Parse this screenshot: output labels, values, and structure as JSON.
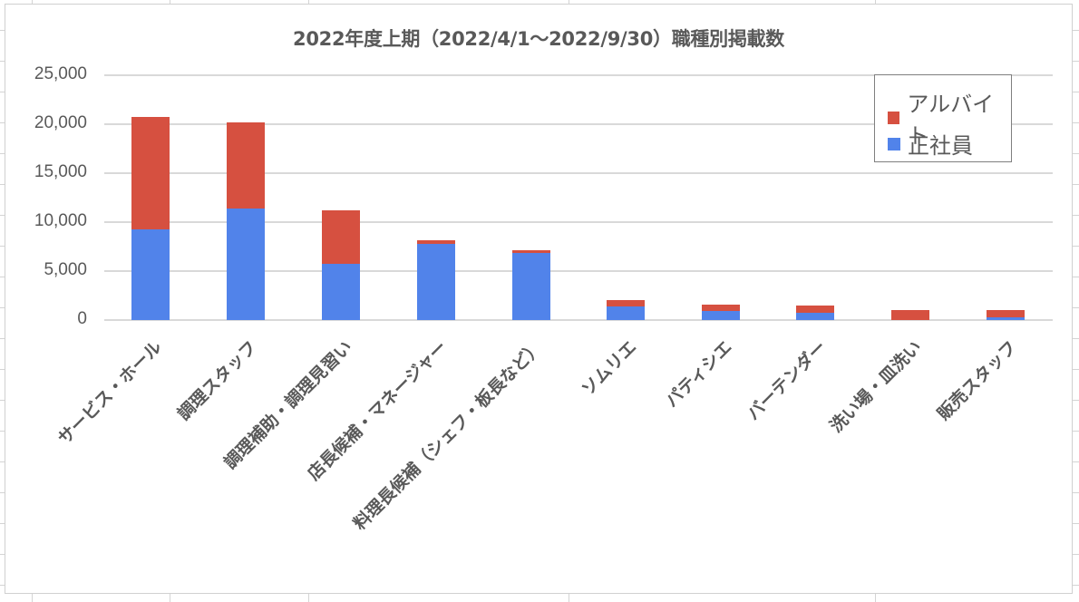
{
  "chart_data": {
    "type": "bar",
    "stacked": true,
    "title": "2022年度上期（2022/4/1〜2022/9/30）職種別掲載数",
    "xlabel": "",
    "ylabel": "",
    "ylim": [
      0,
      25000
    ],
    "yticks": [
      "0",
      "5,000",
      "10,000",
      "15,000",
      "20,000",
      "25,000"
    ],
    "grid": true,
    "legend_position": "top-right",
    "categories": [
      "サービス・ホール",
      "調理スタッフ",
      "調理補助・調理見習い",
      "店長候補・マネージャー",
      "料理長候補（シェフ・板長など）",
      "ソムリエ",
      "パティシエ",
      "バーテンダー",
      "洗い場・皿洗い",
      "販売スタッフ"
    ],
    "series": [
      {
        "name": "正社員",
        "color": "#5183ea",
        "values": [
          9250,
          11400,
          5750,
          7800,
          6850,
          1400,
          950,
          750,
          0,
          300
        ]
      },
      {
        "name": "アルバイト",
        "color": "#d65040",
        "values": [
          11450,
          8800,
          5450,
          350,
          300,
          650,
          650,
          750,
          1000,
          700
        ]
      }
    ],
    "legend": [
      {
        "label": "アルバイト",
        "color": "#d65040"
      },
      {
        "label": "正社員",
        "color": "#5183ea"
      }
    ]
  }
}
